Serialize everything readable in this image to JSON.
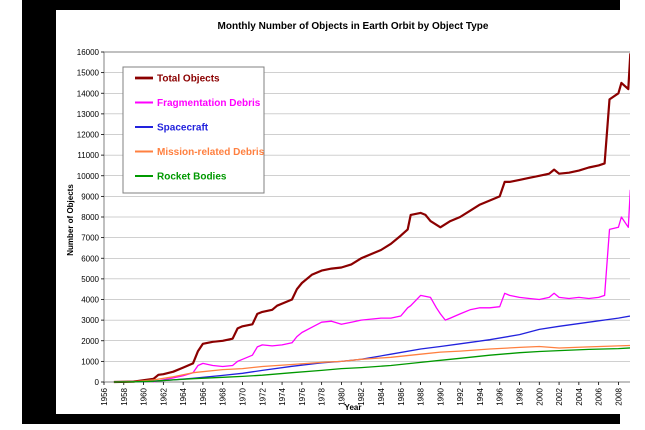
{
  "chart_data": {
    "type": "line",
    "title": "Monthly Number of Objects in Earth Orbit by Object Type",
    "xlabel": "Year",
    "ylabel": "Number of Objects",
    "xlim": [
      1956,
      2012
    ],
    "ylim": [
      0,
      16000
    ],
    "xticks": [
      1956,
      1958,
      1960,
      1962,
      1964,
      1966,
      1968,
      1970,
      1972,
      1974,
      1976,
      1978,
      1980,
      1982,
      1984,
      1986,
      1988,
      1990,
      1992,
      1994,
      1996,
      1998,
      2000,
      2002,
      2004,
      2006,
      2008,
      2010,
      2012
    ],
    "yticks": [
      0,
      1000,
      2000,
      3000,
      4000,
      5000,
      6000,
      7000,
      8000,
      9000,
      10000,
      11000,
      12000,
      13000,
      14000,
      15000,
      16000
    ],
    "grid": true,
    "legend_position": "top-left",
    "series": [
      {
        "name": "Total Objects",
        "color": "#8b0000",
        "width": 2.2,
        "points": [
          [
            1957,
            0
          ],
          [
            1959,
            20
          ],
          [
            1961,
            150
          ],
          [
            1961.5,
            350
          ],
          [
            1962,
            380
          ],
          [
            1963,
            500
          ],
          [
            1964,
            700
          ],
          [
            1965,
            900
          ],
          [
            1965.5,
            1500
          ],
          [
            1966,
            1850
          ],
          [
            1967,
            1950
          ],
          [
            1968,
            2000
          ],
          [
            1969,
            2100
          ],
          [
            1969.5,
            2600
          ],
          [
            1970,
            2700
          ],
          [
            1971,
            2800
          ],
          [
            1971.5,
            3300
          ],
          [
            1972,
            3400
          ],
          [
            1973,
            3500
          ],
          [
            1973.5,
            3700
          ],
          [
            1974,
            3800
          ],
          [
            1975,
            4000
          ],
          [
            1975.5,
            4500
          ],
          [
            1976,
            4800
          ],
          [
            1977,
            5200
          ],
          [
            1978,
            5400
          ],
          [
            1979,
            5500
          ],
          [
            1980,
            5550
          ],
          [
            1981,
            5700
          ],
          [
            1982,
            6000
          ],
          [
            1983,
            6200
          ],
          [
            1984,
            6400
          ],
          [
            1985,
            6700
          ],
          [
            1986,
            7100
          ],
          [
            1986.7,
            7400
          ],
          [
            1987,
            8100
          ],
          [
            1988,
            8200
          ],
          [
            1988.5,
            8100
          ],
          [
            1989,
            7800
          ],
          [
            1990,
            7500
          ],
          [
            1991,
            7800
          ],
          [
            1992,
            8000
          ],
          [
            1993,
            8300
          ],
          [
            1994,
            8600
          ],
          [
            1995,
            8800
          ],
          [
            1996,
            9000
          ],
          [
            1996.5,
            9700
          ],
          [
            1997,
            9700
          ],
          [
            1998,
            9800
          ],
          [
            1999,
            9900
          ],
          [
            2000,
            10000
          ],
          [
            2001,
            10100
          ],
          [
            2001.5,
            10300
          ],
          [
            2002,
            10100
          ],
          [
            2003,
            10150
          ],
          [
            2004,
            10250
          ],
          [
            2005,
            10400
          ],
          [
            2006,
            10500
          ],
          [
            2006.6,
            10600
          ],
          [
            2007.1,
            13700
          ],
          [
            2008,
            14000
          ],
          [
            2008.3,
            14500
          ],
          [
            2009,
            14200
          ],
          [
            2009.2,
            15900
          ],
          [
            2010,
            15950
          ],
          [
            2011,
            15850
          ]
        ]
      },
      {
        "name": "Fragmentation Debris",
        "color": "#ff00ff",
        "width": 1.3,
        "points": [
          [
            1961,
            0
          ],
          [
            1962,
            100
          ],
          [
            1963,
            200
          ],
          [
            1964,
            300
          ],
          [
            1965,
            450
          ],
          [
            1965.5,
            800
          ],
          [
            1966,
            900
          ],
          [
            1967,
            800
          ],
          [
            1968,
            750
          ],
          [
            1969,
            800
          ],
          [
            1969.5,
            1000
          ],
          [
            1970,
            1100
          ],
          [
            1971,
            1300
          ],
          [
            1971.5,
            1700
          ],
          [
            1972,
            1800
          ],
          [
            1973,
            1750
          ],
          [
            1974,
            1800
          ],
          [
            1975,
            1900
          ],
          [
            1975.5,
            2200
          ],
          [
            1976,
            2400
          ],
          [
            1977,
            2650
          ],
          [
            1978,
            2900
          ],
          [
            1979,
            2950
          ],
          [
            1980,
            2800
          ],
          [
            1981,
            2900
          ],
          [
            1982,
            3000
          ],
          [
            1983,
            3050
          ],
          [
            1984,
            3100
          ],
          [
            1985,
            3100
          ],
          [
            1986,
            3200
          ],
          [
            1986.7,
            3600
          ],
          [
            1987,
            3700
          ],
          [
            1988,
            4200
          ],
          [
            1989,
            4100
          ],
          [
            1989.6,
            3600
          ],
          [
            1990,
            3300
          ],
          [
            1990.5,
            3000
          ],
          [
            1991,
            3100
          ],
          [
            1992,
            3300
          ],
          [
            1993,
            3500
          ],
          [
            1994,
            3600
          ],
          [
            1995,
            3600
          ],
          [
            1996,
            3650
          ],
          [
            1996.5,
            4300
          ],
          [
            1997,
            4200
          ],
          [
            1998,
            4100
          ],
          [
            1999,
            4050
          ],
          [
            2000,
            4000
          ],
          [
            2001,
            4100
          ],
          [
            2001.5,
            4300
          ],
          [
            2002,
            4100
          ],
          [
            2003,
            4050
          ],
          [
            2004,
            4100
          ],
          [
            2005,
            4050
          ],
          [
            2006,
            4100
          ],
          [
            2006.6,
            4200
          ],
          [
            2007.1,
            7400
          ],
          [
            2008,
            7500
          ],
          [
            2008.3,
            8000
          ],
          [
            2009,
            7500
          ],
          [
            2009.2,
            9300
          ],
          [
            2010,
            9200
          ],
          [
            2011,
            9000
          ]
        ]
      },
      {
        "name": "Spacecraft",
        "color": "#2222dd",
        "width": 1.3,
        "points": [
          [
            1957,
            0
          ],
          [
            1959,
            10
          ],
          [
            1961,
            40
          ],
          [
            1963,
            100
          ],
          [
            1965,
            180
          ],
          [
            1968,
            320
          ],
          [
            1970,
            420
          ],
          [
            1972,
            560
          ],
          [
            1975,
            760
          ],
          [
            1978,
            930
          ],
          [
            1980,
            1000
          ],
          [
            1982,
            1100
          ],
          [
            1985,
            1350
          ],
          [
            1988,
            1600
          ],
          [
            1990,
            1720
          ],
          [
            1992,
            1850
          ],
          [
            1995,
            2050
          ],
          [
            1998,
            2300
          ],
          [
            2000,
            2550
          ],
          [
            2002,
            2700
          ],
          [
            2005,
            2900
          ],
          [
            2008,
            3100
          ],
          [
            2011,
            3350
          ]
        ]
      },
      {
        "name": "Mission-related Debris",
        "color": "#ff8040",
        "width": 1.3,
        "points": [
          [
            1957,
            0
          ],
          [
            1959,
            20
          ],
          [
            1961,
            100
          ],
          [
            1963,
            250
          ],
          [
            1965,
            450
          ],
          [
            1968,
            600
          ],
          [
            1970,
            650
          ],
          [
            1972,
            750
          ],
          [
            1975,
            850
          ],
          [
            1978,
            950
          ],
          [
            1980,
            1000
          ],
          [
            1982,
            1100
          ],
          [
            1985,
            1200
          ],
          [
            1988,
            1350
          ],
          [
            1990,
            1450
          ],
          [
            1992,
            1500
          ],
          [
            1995,
            1600
          ],
          [
            1998,
            1680
          ],
          [
            2000,
            1720
          ],
          [
            2002,
            1650
          ],
          [
            2005,
            1700
          ],
          [
            2008,
            1750
          ],
          [
            2011,
            1800
          ]
        ]
      },
      {
        "name": "Rocket Bodies",
        "color": "#009900",
        "width": 1.3,
        "points": [
          [
            1957,
            0
          ],
          [
            1959,
            10
          ],
          [
            1961,
            40
          ],
          [
            1963,
            100
          ],
          [
            1965,
            160
          ],
          [
            1968,
            230
          ],
          [
            1970,
            270
          ],
          [
            1972,
            330
          ],
          [
            1975,
            450
          ],
          [
            1978,
            560
          ],
          [
            1980,
            650
          ],
          [
            1982,
            700
          ],
          [
            1985,
            800
          ],
          [
            1988,
            950
          ],
          [
            1990,
            1050
          ],
          [
            1992,
            1150
          ],
          [
            1995,
            1300
          ],
          [
            1998,
            1420
          ],
          [
            2000,
            1480
          ],
          [
            2002,
            1520
          ],
          [
            2005,
            1580
          ],
          [
            2008,
            1620
          ],
          [
            2011,
            1700
          ]
        ]
      }
    ]
  }
}
